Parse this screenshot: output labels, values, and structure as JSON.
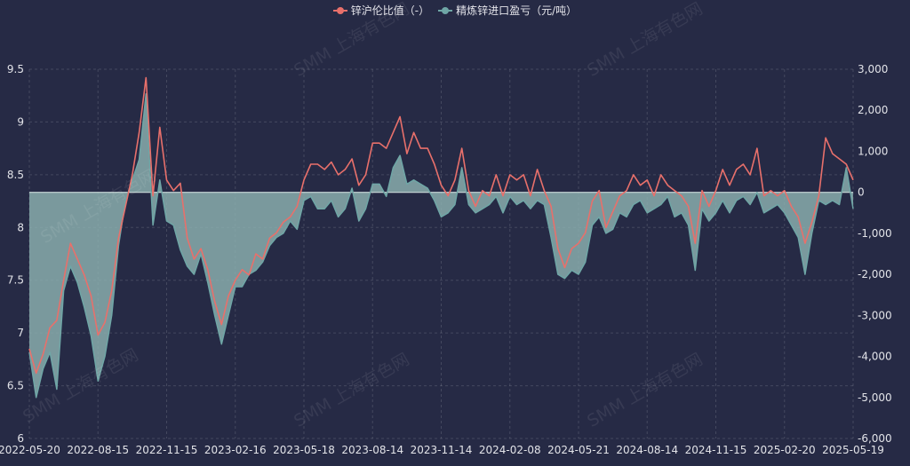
{
  "watermark": "SMM 上海有色网",
  "colors": {
    "background": "#262a45",
    "zero_line": "#c9d9d8"
  },
  "chart_data": {
    "type": "line",
    "grid": true,
    "legend_position": "top-center",
    "x": [
      "2022-05-20",
      "2022-05-30",
      "2022-06-07",
      "2022-06-15",
      "2022-06-23",
      "2022-07-01",
      "2022-07-11",
      "2022-07-20",
      "2022-07-28",
      "2022-08-05",
      "2022-08-15",
      "2022-08-24",
      "2022-09-02",
      "2022-09-13",
      "2022-09-21",
      "2022-09-30",
      "2022-10-10",
      "2022-10-18",
      "2022-10-28",
      "2022-11-07",
      "2022-11-15",
      "2022-11-24",
      "2022-12-02",
      "2022-12-13",
      "2022-12-22",
      "2022-12-30",
      "2023-01-10",
      "2023-01-19",
      "2023-01-30",
      "2023-02-07",
      "2023-02-16",
      "2023-02-27",
      "2023-03-07",
      "2023-03-15",
      "2023-03-24",
      "2023-04-03",
      "2023-04-12",
      "2023-04-21",
      "2023-05-04",
      "2023-05-10",
      "2023-05-18",
      "2023-05-26",
      "2023-06-05",
      "2023-06-13",
      "2023-06-21",
      "2023-07-03",
      "2023-07-10",
      "2023-07-19",
      "2023-07-27",
      "2023-08-04",
      "2023-08-14",
      "2023-08-23",
      "2023-09-01",
      "2023-09-11",
      "2023-09-20",
      "2023-09-28",
      "2023-10-09",
      "2023-10-17",
      "2023-10-27",
      "2023-11-06",
      "2023-11-14",
      "2023-11-22",
      "2023-12-01",
      "2023-12-11",
      "2023-12-19",
      "2023-12-27",
      "2024-01-05",
      "2024-01-15",
      "2024-01-23",
      "2024-01-31",
      "2024-02-08",
      "2024-02-19",
      "2024-02-28",
      "2024-03-11",
      "2024-03-20",
      "2024-04-01",
      "2024-04-10",
      "2024-04-19",
      "2024-04-29",
      "2024-05-10",
      "2024-05-21",
      "2024-05-29",
      "2024-06-06",
      "2024-06-14",
      "2024-06-24",
      "2024-07-02",
      "2024-07-11",
      "2024-07-19",
      "2024-07-29",
      "2024-08-05",
      "2024-08-14",
      "2024-08-23",
      "2024-09-02",
      "2024-09-11",
      "2024-09-20",
      "2024-09-30",
      "2024-10-09",
      "2024-10-18",
      "2024-10-28",
      "2024-11-06",
      "2024-11-15",
      "2024-11-25",
      "2024-12-04",
      "2024-12-13",
      "2024-12-23",
      "2025-01-02",
      "2025-01-13",
      "2025-01-22",
      "2025-02-05",
      "2025-02-11",
      "2025-02-20",
      "2025-02-28",
      "2025-03-10",
      "2025-03-18",
      "2025-03-27",
      "2025-04-03",
      "2025-04-14",
      "2025-04-22",
      "2025-04-30",
      "2025-05-09",
      "2025-05-19"
    ],
    "x_ticks": [
      "2022-05-20",
      "2022-08-15",
      "2022-11-15",
      "2023-02-16",
      "2023-05-18",
      "2023-08-14",
      "2023-11-14",
      "2024-02-08",
      "2024-05-21",
      "2024-08-14",
      "2024-11-15",
      "2025-02-20",
      "2025-05-19"
    ],
    "series": [
      {
        "name": "锌沪伦比值（-）",
        "type": "line",
        "axis": "left",
        "color": "#e8706b",
        "values": [
          6.85,
          6.62,
          6.8,
          7.05,
          7.12,
          7.5,
          7.85,
          7.7,
          7.55,
          7.35,
          6.98,
          7.1,
          7.4,
          7.9,
          8.2,
          8.5,
          8.9,
          9.42,
          8.3,
          8.95,
          8.45,
          8.35,
          8.42,
          7.9,
          7.7,
          7.8,
          7.6,
          7.3,
          7.08,
          7.35,
          7.5,
          7.6,
          7.55,
          7.75,
          7.7,
          7.9,
          7.95,
          8.05,
          8.1,
          8.2,
          8.45,
          8.6,
          8.6,
          8.55,
          8.62,
          8.5,
          8.55,
          8.65,
          8.4,
          8.5,
          8.8,
          8.8,
          8.75,
          8.9,
          9.05,
          8.7,
          8.9,
          8.75,
          8.75,
          8.6,
          8.4,
          8.3,
          8.45,
          8.75,
          8.35,
          8.2,
          8.35,
          8.3,
          8.5,
          8.3,
          8.5,
          8.45,
          8.5,
          8.3,
          8.55,
          8.35,
          8.2,
          7.8,
          7.62,
          7.8,
          7.85,
          7.95,
          8.25,
          8.35,
          8.0,
          8.15,
          8.3,
          8.35,
          8.5,
          8.4,
          8.45,
          8.3,
          8.5,
          8.4,
          8.35,
          8.3,
          8.2,
          7.85,
          8.35,
          8.2,
          8.35,
          8.55,
          8.4,
          8.55,
          8.6,
          8.5,
          8.75,
          8.3,
          8.35,
          8.3,
          8.35,
          8.2,
          8.1,
          7.85,
          8.05,
          8.3,
          8.85,
          8.7,
          8.65,
          8.6,
          8.45
        ]
      },
      {
        "name": "精炼锌进口盈亏（元/吨）",
        "type": "area",
        "axis": "right",
        "color": "#6fa6a6",
        "fill": "#8db2b1",
        "values": [
          -3900,
          -5000,
          -4300,
          -3900,
          -4800,
          -2400,
          -1800,
          -2200,
          -2800,
          -3500,
          -4600,
          -4000,
          -3000,
          -1300,
          -200,
          300,
          800,
          2400,
          -800,
          300,
          -700,
          -800,
          -1400,
          -1800,
          -2000,
          -1500,
          -2200,
          -3000,
          -3700,
          -3000,
          -2300,
          -2300,
          -2000,
          -1900,
          -1700,
          -1300,
          -1100,
          -1000,
          -700,
          -900,
          -200,
          -100,
          -400,
          -400,
          -200,
          -600,
          -400,
          100,
          -700,
          -400,
          200,
          200,
          -100,
          600,
          900,
          200,
          300,
          200,
          100,
          -200,
          -600,
          -500,
          -300,
          600,
          -300,
          -500,
          -400,
          -300,
          -100,
          -500,
          -100,
          -300,
          -200,
          -400,
          -200,
          -300,
          -1100,
          -2000,
          -2100,
          -1900,
          -2000,
          -1700,
          -800,
          -600,
          -1000,
          -900,
          -500,
          -600,
          -300,
          -200,
          -500,
          -400,
          -300,
          -100,
          -600,
          -500,
          -800,
          -1900,
          -400,
          -700,
          -500,
          -200,
          -500,
          -200,
          -100,
          -300,
          0,
          -500,
          -400,
          -300,
          -500,
          -800,
          -1100,
          -2000,
          -1000,
          -200,
          -300,
          -200,
          -300,
          600,
          -400
        ]
      }
    ],
    "y_left": {
      "range": [
        6,
        9.5
      ],
      "ticks": [
        {
          "value": 9.5,
          "label": "9.5"
        },
        {
          "value": 9,
          "label": "9"
        },
        {
          "value": 8.5,
          "label": "8.5"
        },
        {
          "value": 8,
          "label": "8"
        },
        {
          "value": 7.5,
          "label": "7.5"
        },
        {
          "value": 7,
          "label": "7"
        },
        {
          "value": 6.5,
          "label": "6.5"
        },
        {
          "value": 6,
          "label": "6"
        }
      ]
    },
    "y_right": {
      "range": [
        -6000,
        3000
      ],
      "ticks": [
        {
          "value": 3000,
          "label": "3,000"
        },
        {
          "value": 2000,
          "label": "2,000"
        },
        {
          "value": 1000,
          "label": "1,000"
        },
        {
          "value": 0,
          "label": "0"
        },
        {
          "value": -1000,
          "label": "-1,000"
        },
        {
          "value": -2000,
          "label": "-2,000"
        },
        {
          "value": -3000,
          "label": "-3,000"
        },
        {
          "value": -4000,
          "label": "-4,000"
        },
        {
          "value": -5000,
          "label": "-5,000"
        },
        {
          "value": -6000,
          "label": "-6,000"
        }
      ]
    }
  }
}
